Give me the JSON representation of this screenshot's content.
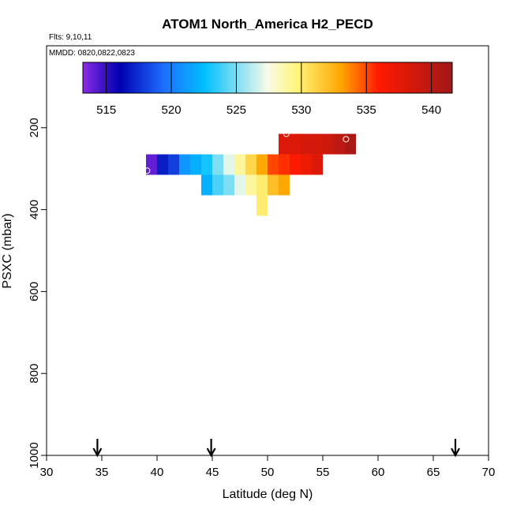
{
  "chart_data": {
    "type": "heatmap",
    "title": "ATOM1 North_America H2_PECD",
    "annotations": [
      "Flts: 9,10,11",
      "MMDD: 0820,0822,0823"
    ],
    "xlabel": "Latitude (deg N)",
    "ylabel": "PSXC (mbar)",
    "xlim": [
      30,
      70
    ],
    "ylim": [
      1000,
      0
    ],
    "y_reversed": true,
    "xticks": [
      30,
      35,
      40,
      45,
      50,
      55,
      60,
      65,
      70
    ],
    "yticks": [
      200,
      400,
      600,
      800,
      1000
    ],
    "grid": false,
    "colorbar": {
      "min": 513.2,
      "max": 541.6,
      "ticks": [
        515,
        520,
        525,
        530,
        535,
        540
      ],
      "placement": "top-inside"
    },
    "cells": [
      {
        "lat": 39.5,
        "p": 290,
        "v": 514
      },
      {
        "lat": 40.5,
        "p": 290,
        "v": 517
      },
      {
        "lat": 41.5,
        "p": 290,
        "v": 518
      },
      {
        "lat": 42.5,
        "p": 290,
        "v": 521
      },
      {
        "lat": 43.5,
        "p": 290,
        "v": 522
      },
      {
        "lat": 44.5,
        "p": 290,
        "v": 523
      },
      {
        "lat": 45.5,
        "p": 290,
        "v": 525
      },
      {
        "lat": 46.5,
        "p": 290,
        "v": 527
      },
      {
        "lat": 47.5,
        "p": 290,
        "v": 529
      },
      {
        "lat": 48.5,
        "p": 290,
        "v": 531
      },
      {
        "lat": 49.5,
        "p": 290,
        "v": 533
      },
      {
        "lat": 50.5,
        "p": 290,
        "v": 535
      },
      {
        "lat": 51.5,
        "p": 290,
        "v": 535.5
      },
      {
        "lat": 52.5,
        "p": 290,
        "v": 536
      },
      {
        "lat": 53.5,
        "p": 290,
        "v": 537
      },
      {
        "lat": 54.5,
        "p": 290,
        "v": 538
      },
      {
        "lat": 44.5,
        "p": 340,
        "v": 522
      },
      {
        "lat": 45.5,
        "p": 340,
        "v": 524
      },
      {
        "lat": 46.5,
        "p": 340,
        "v": 525
      },
      {
        "lat": 47.5,
        "p": 340,
        "v": 527
      },
      {
        "lat": 48.5,
        "p": 340,
        "v": 529
      },
      {
        "lat": 49.5,
        "p": 340,
        "v": 530
      },
      {
        "lat": 50.5,
        "p": 340,
        "v": 532
      },
      {
        "lat": 51.5,
        "p": 340,
        "v": 533
      },
      {
        "lat": 49.5,
        "p": 390,
        "v": 530
      },
      {
        "lat": 51.5,
        "p": 240,
        "v": 538
      },
      {
        "lat": 52.5,
        "p": 240,
        "v": 538
      },
      {
        "lat": 53.5,
        "p": 240,
        "v": 538.5
      },
      {
        "lat": 54.5,
        "p": 240,
        "v": 538.5
      },
      {
        "lat": 55.5,
        "p": 240,
        "v": 539
      },
      {
        "lat": 56.5,
        "p": 240,
        "v": 540
      },
      {
        "lat": 57.5,
        "p": 240,
        "v": 541
      }
    ],
    "cell_size": {
      "lat": 1,
      "p": 50
    },
    "open_circles": [
      {
        "lat": 51.7,
        "p": 215
      },
      {
        "lat": 57.1,
        "p": 228
      },
      {
        "lat": 39.1,
        "p": 305
      }
    ],
    "arrows_at_lat": [
      34.6,
      44.9,
      67.0
    ]
  }
}
